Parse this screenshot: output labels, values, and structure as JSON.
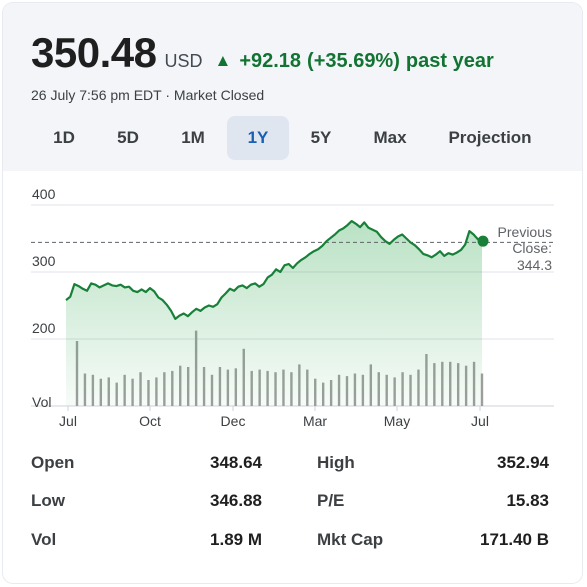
{
  "quote": {
    "price": "350.48",
    "currency": "USD",
    "change_arrow": "▲",
    "change_value": "+92.18",
    "change_percent": "(+35.69%)",
    "change_period": "past year",
    "timestamp": "26 July 7:56 pm EDT · Market Closed",
    "positive_color": "#137333"
  },
  "tabs": [
    {
      "label": "1D",
      "active": false
    },
    {
      "label": "5D",
      "active": false
    },
    {
      "label": "1M",
      "active": false
    },
    {
      "label": "1Y",
      "active": true
    },
    {
      "label": "5Y",
      "active": false
    },
    {
      "label": "Max",
      "active": false
    },
    {
      "label": "Projection",
      "active": false
    }
  ],
  "chart_data": {
    "type": "area",
    "y_ticks": [
      "400",
      "300",
      "200"
    ],
    "ylim": [
      190,
      400
    ],
    "volume_label": "Vol",
    "x_ticks": [
      "Jul",
      "Oct",
      "Dec",
      "Mar",
      "May",
      "Jul"
    ],
    "previous_close": {
      "label_line1": "Previous",
      "label_line2": "Close:",
      "value": "344.3",
      "level": 344.3
    },
    "last_price": 350.48,
    "line_color": "#188038",
    "prices": [
      258,
      263,
      282,
      279,
      275,
      272,
      283,
      281,
      277,
      280,
      283,
      280,
      279,
      281,
      277,
      278,
      272,
      270,
      274,
      270,
      276,
      271,
      262,
      258,
      251,
      242,
      230,
      235,
      238,
      234,
      240,
      245,
      242,
      247,
      250,
      248,
      252,
      262,
      268,
      275,
      272,
      278,
      280,
      276,
      281,
      283,
      278,
      282,
      292,
      296,
      304,
      300,
      310,
      312,
      306,
      313,
      318,
      322,
      327,
      331,
      334,
      339,
      346,
      351,
      356,
      362,
      365,
      370,
      376,
      372,
      367,
      374,
      366,
      363,
      360,
      352,
      346,
      342,
      348,
      353,
      356,
      350,
      344,
      340,
      334,
      327,
      325,
      322,
      326,
      331,
      324,
      328,
      326,
      329,
      333,
      341,
      361,
      356,
      349,
      350
    ],
    "volume": [
      0.5,
      0.25,
      0.24,
      0.21,
      0.22,
      0.18,
      0.24,
      0.21,
      0.26,
      0.2,
      0.22,
      0.26,
      0.27,
      0.31,
      0.3,
      0.58,
      0.3,
      0.24,
      0.3,
      0.28,
      0.29,
      0.44,
      0.27,
      0.28,
      0.27,
      0.26,
      0.28,
      0.26,
      0.32,
      0.28,
      0.21,
      0.18,
      0.2,
      0.24,
      0.23,
      0.25,
      0.24,
      0.32,
      0.26,
      0.24,
      0.22,
      0.26,
      0.24,
      0.28,
      0.4,
      0.33,
      0.34,
      0.34,
      0.33,
      0.31,
      0.34,
      0.25
    ],
    "stroke_volume": "#9e9e9e"
  },
  "stats": {
    "open_label": "Open",
    "open_value": "348.64",
    "low_label": "Low",
    "low_value": "346.88",
    "vol_label": "Vol",
    "vol_value": "1.89 M",
    "high_label": "High",
    "high_value": "352.94",
    "pe_label": "P/E",
    "pe_value": "15.83",
    "mktcap_label": "Mkt Cap",
    "mktcap_value": "171.40 B"
  }
}
